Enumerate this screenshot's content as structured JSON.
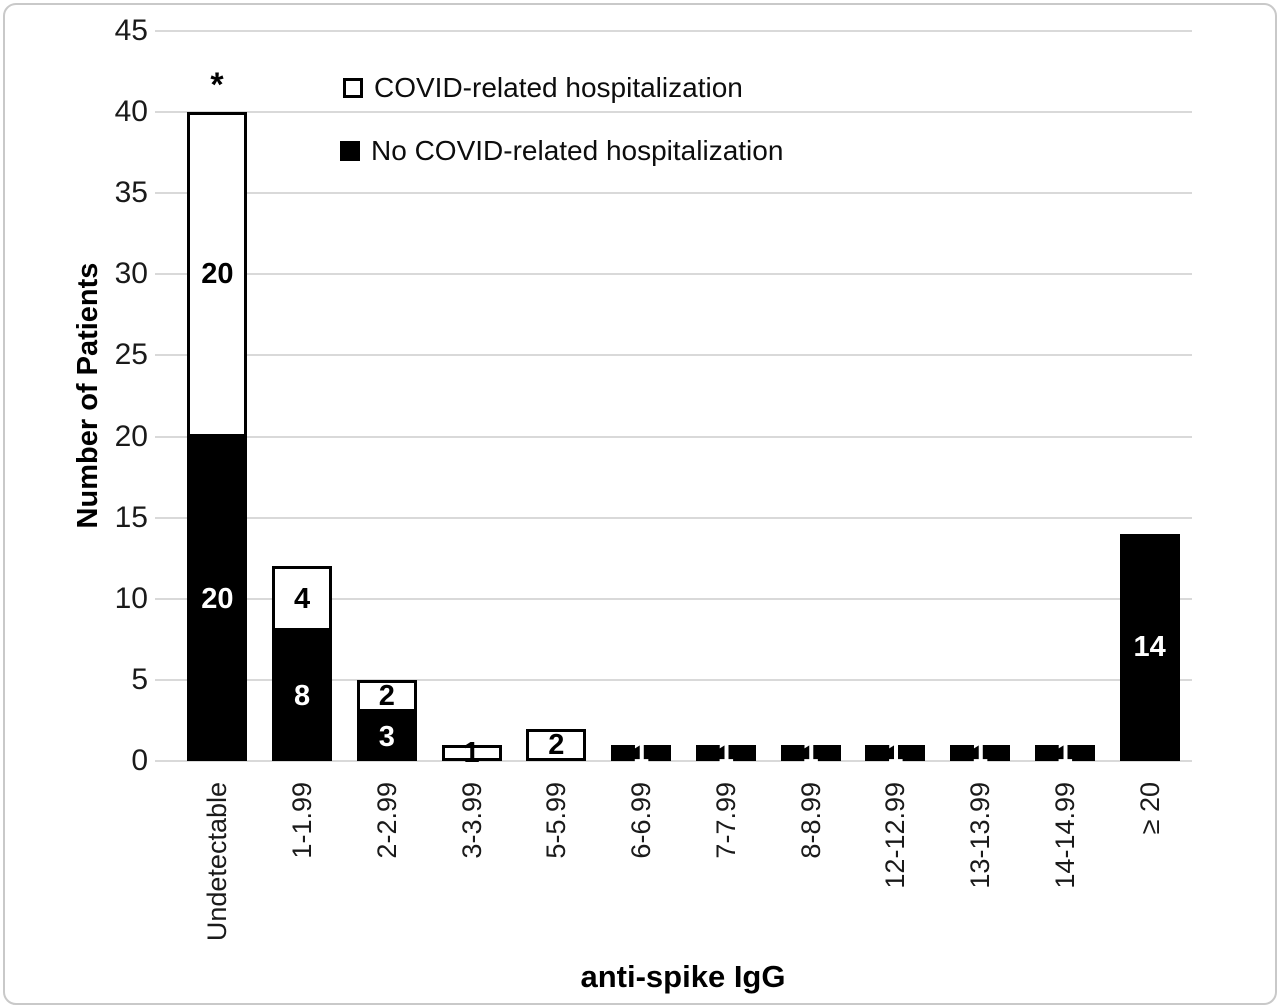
{
  "figure": {
    "annotation_star": "*",
    "legend": [
      {
        "label": "COVID-related hospitalization",
        "swatch_color": "#ffffff"
      },
      {
        "label": "No COVID-related hospitalization",
        "swatch_color": "#000000"
      }
    ]
  },
  "chart_data": {
    "type": "bar",
    "stacked": true,
    "title": "",
    "xlabel": "anti-spike IgG",
    "ylabel": "Number of Patients",
    "ylim": [
      0,
      45
    ],
    "ytick_step": 5,
    "grid": true,
    "legend_position": "inside-top-left",
    "categories": [
      "Undetectable",
      "1-1.99",
      "2-2.99",
      "3-3.99",
      "5-5.99",
      "6-6.99",
      "7-7.99",
      "8-8.99",
      "12-12.99",
      "13-13.99",
      "14-14.99",
      "≥ 20"
    ],
    "series": [
      {
        "name": "No COVID-related hospitalization",
        "color": "#000000",
        "label_color": "#ffffff",
        "values": [
          20,
          8,
          3,
          0,
          0,
          1,
          1,
          1,
          1,
          1,
          1,
          14
        ]
      },
      {
        "name": "COVID-related hospitalization",
        "color": "#ffffff",
        "label_color": "#000000",
        "values": [
          20,
          4,
          2,
          1,
          2,
          0,
          0,
          0,
          0,
          0,
          0,
          0
        ]
      }
    ],
    "annotations": [
      {
        "text": "*",
        "category": "Undetectable",
        "position": "above-bar"
      }
    ],
    "colors": {
      "gridline": "#d9d9d9",
      "axis_text": "#1a1a1a",
      "bar_border": "#000000"
    }
  }
}
